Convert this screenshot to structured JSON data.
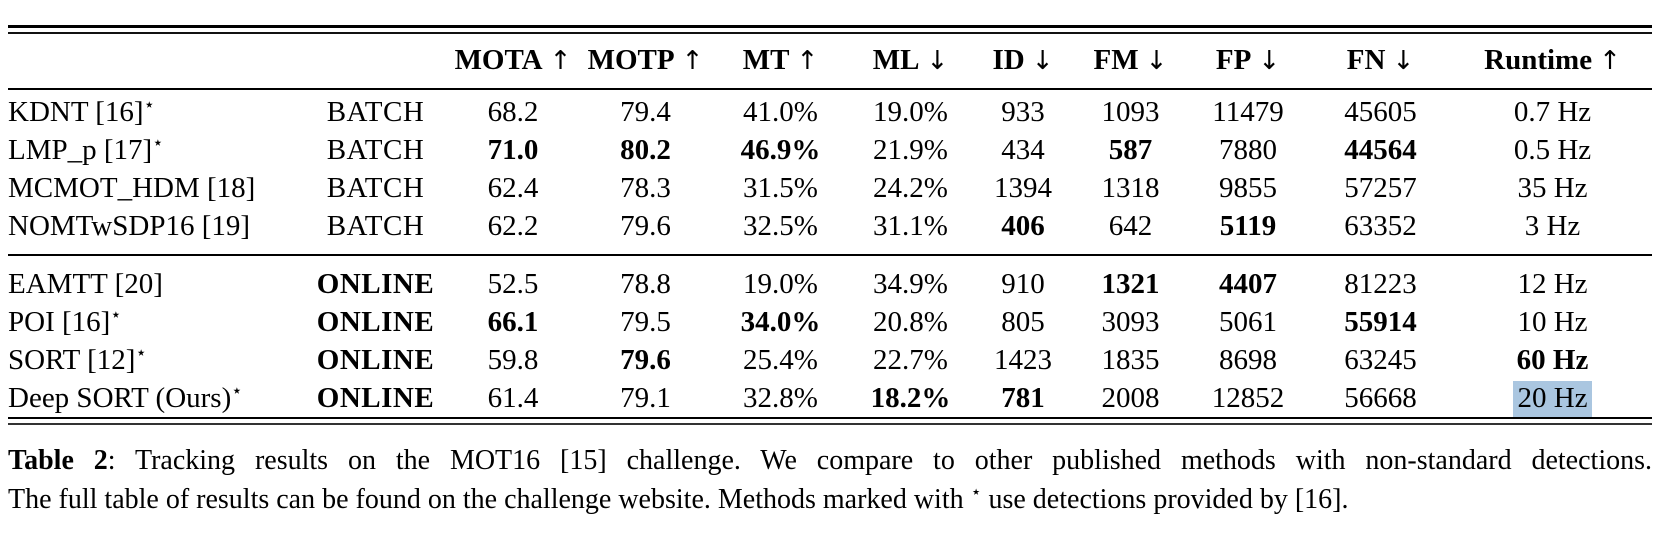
{
  "page": {
    "background": "#ffffff",
    "text_color": "#000000",
    "highlight_color": "#aac6e0"
  },
  "table": {
    "column_keys": [
      "mota",
      "motp",
      "mt",
      "ml",
      "id",
      "fm",
      "fp",
      "fn",
      "runtime"
    ],
    "headers": [
      {
        "label": "MOTA",
        "arrow": "↑"
      },
      {
        "label": "MOTP",
        "arrow": "↑"
      },
      {
        "label": "MT",
        "arrow": "↑"
      },
      {
        "label": "ML",
        "arrow": "↓"
      },
      {
        "label": "ID",
        "arrow": "↓"
      },
      {
        "label": "FM",
        "arrow": "↓"
      },
      {
        "label": "FP",
        "arrow": "↓"
      },
      {
        "label": "FN",
        "arrow": "↓"
      },
      {
        "label": "Runtime",
        "arrow": "↑"
      }
    ],
    "sections": [
      {
        "name": "batch-methods",
        "rows": [
          {
            "method": "KDNT [16]",
            "star": true,
            "mode": "BATCH",
            "mode_bold": false,
            "cells": [
              {
                "text": "68.2",
                "bold": false
              },
              {
                "text": "79.4",
                "bold": false
              },
              {
                "text": "41.0%",
                "bold": false
              },
              {
                "text": "19.0%",
                "bold": false
              },
              {
                "text": "933",
                "bold": false
              },
              {
                "text": "1093",
                "bold": false
              },
              {
                "text": "11479",
                "bold": false
              },
              {
                "text": "45605",
                "bold": false
              },
              {
                "text": "0.7 Hz",
                "bold": false
              }
            ]
          },
          {
            "method": "LMP_p [17]",
            "star": true,
            "mode": "BATCH",
            "mode_bold": false,
            "cells": [
              {
                "text": "71.0",
                "bold": true
              },
              {
                "text": "80.2",
                "bold": true
              },
              {
                "text": "46.9%",
                "bold": true
              },
              {
                "text": "21.9%",
                "bold": false
              },
              {
                "text": "434",
                "bold": false
              },
              {
                "text": "587",
                "bold": true
              },
              {
                "text": "7880",
                "bold": false
              },
              {
                "text": "44564",
                "bold": true
              },
              {
                "text": "0.5 Hz",
                "bold": false
              }
            ]
          },
          {
            "method": "MCMOT_HDM [18]",
            "star": false,
            "mode": "BATCH",
            "mode_bold": false,
            "cells": [
              {
                "text": "62.4",
                "bold": false
              },
              {
                "text": "78.3",
                "bold": false
              },
              {
                "text": "31.5%",
                "bold": false
              },
              {
                "text": "24.2%",
                "bold": false
              },
              {
                "text": "1394",
                "bold": false
              },
              {
                "text": "1318",
                "bold": false
              },
              {
                "text": "9855",
                "bold": false
              },
              {
                "text": "57257",
                "bold": false
              },
              {
                "text": "35 Hz",
                "bold": false
              }
            ]
          },
          {
            "method": "NOMTwSDP16 [19]",
            "star": false,
            "mode": "BATCH",
            "mode_bold": false,
            "cells": [
              {
                "text": "62.2",
                "bold": false
              },
              {
                "text": "79.6",
                "bold": false
              },
              {
                "text": "32.5%",
                "bold": false
              },
              {
                "text": "31.1%",
                "bold": false
              },
              {
                "text": "406",
                "bold": true
              },
              {
                "text": "642",
                "bold": false
              },
              {
                "text": "5119",
                "bold": true
              },
              {
                "text": "63352",
                "bold": false
              },
              {
                "text": "3 Hz",
                "bold": false
              }
            ]
          }
        ]
      },
      {
        "name": "online-methods",
        "rows": [
          {
            "method": "EAMTT [20]",
            "star": false,
            "mode": "ONLINE",
            "mode_bold": true,
            "cells": [
              {
                "text": "52.5",
                "bold": false
              },
              {
                "text": "78.8",
                "bold": false
              },
              {
                "text": "19.0%",
                "bold": false
              },
              {
                "text": "34.9%",
                "bold": false
              },
              {
                "text": "910",
                "bold": false
              },
              {
                "text": "1321",
                "bold": true
              },
              {
                "text": "4407",
                "bold": true
              },
              {
                "text": "81223",
                "bold": false
              },
              {
                "text": "12 Hz",
                "bold": false
              }
            ]
          },
          {
            "method": "POI [16]",
            "star": true,
            "mode": "ONLINE",
            "mode_bold": true,
            "cells": [
              {
                "text": "66.1",
                "bold": true
              },
              {
                "text": "79.5",
                "bold": false
              },
              {
                "text": "34.0%",
                "bold": true
              },
              {
                "text": "20.8%",
                "bold": false
              },
              {
                "text": "805",
                "bold": false
              },
              {
                "text": "3093",
                "bold": false
              },
              {
                "text": "5061",
                "bold": false
              },
              {
                "text": "55914",
                "bold": true
              },
              {
                "text": "10 Hz",
                "bold": false
              }
            ]
          },
          {
            "method": "SORT [12]",
            "star": true,
            "mode": "ONLINE",
            "mode_bold": true,
            "cells": [
              {
                "text": "59.8",
                "bold": false
              },
              {
                "text": "79.6",
                "bold": true
              },
              {
                "text": "25.4%",
                "bold": false
              },
              {
                "text": "22.7%",
                "bold": false
              },
              {
                "text": "1423",
                "bold": false
              },
              {
                "text": "1835",
                "bold": false
              },
              {
                "text": "8698",
                "bold": false
              },
              {
                "text": "63245",
                "bold": false
              },
              {
                "text": "60 Hz",
                "bold": true
              }
            ]
          },
          {
            "method": "Deep SORT (Ours)",
            "star": true,
            "mode": "ONLINE",
            "mode_bold": true,
            "cells": [
              {
                "text": "61.4",
                "bold": false
              },
              {
                "text": "79.1",
                "bold": false
              },
              {
                "text": "32.8%",
                "bold": false
              },
              {
                "text": "18.2%",
                "bold": true
              },
              {
                "text": "781",
                "bold": true
              },
              {
                "text": "2008",
                "bold": false
              },
              {
                "text": "12852",
                "bold": false
              },
              {
                "text": "56668",
                "bold": false
              },
              {
                "text": "20 Hz",
                "bold": false,
                "highlight": true
              }
            ]
          }
        ]
      }
    ],
    "star_glyph": "⋆"
  },
  "caption": {
    "label": "Table 2",
    "line1_rest": ": Tracking results on the MOT16 [15] challenge. We compare to other published methods with non-standard detections.",
    "line2_pre_star": "The full table of results can be found on the challenge website. Methods marked with ",
    "star": "⋆",
    "line2_post_star": " use detections provided by [16]."
  }
}
